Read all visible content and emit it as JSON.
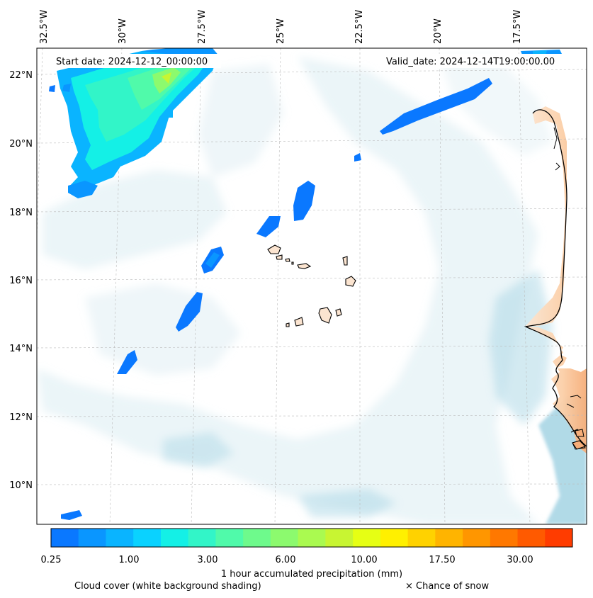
{
  "map": {
    "start_date_text": "Start date: 2024-12-12_00:00:00",
    "valid_date_text": "Valid_date: 2024-12-14T19:00:00.00",
    "lon_labels": [
      "32.5°W",
      "30°W",
      "27.5°W",
      "25°W",
      "22.5°W",
      "20°W",
      "17.5°W"
    ],
    "lat_labels": [
      "22°N",
      "20°N",
      "18°N",
      "16°N",
      "14°N",
      "12°N",
      "10°N"
    ]
  },
  "colorbar": {
    "title": "1 hour accumulated precipitation (mm)",
    "tick_labels": [
      "0.25",
      "1.00",
      "3.00",
      "6.00",
      "10.00",
      "17.50",
      "30.00"
    ],
    "colors": [
      "#0a78ff",
      "#0a96ff",
      "#0ab4ff",
      "#0ad2ff",
      "#14f0e6",
      "#32f5c8",
      "#50faaa",
      "#6efa8c",
      "#8cfa6e",
      "#aafa50",
      "#c8f532",
      "#e6ff14",
      "#fff000",
      "#ffd200",
      "#ffb400",
      "#ff9600",
      "#ff7800",
      "#ff5a00",
      "#ff3c00"
    ]
  },
  "legend": {
    "cloud_cover": "Cloud cover (white background shading)",
    "snow": "× Chance of snow"
  }
}
